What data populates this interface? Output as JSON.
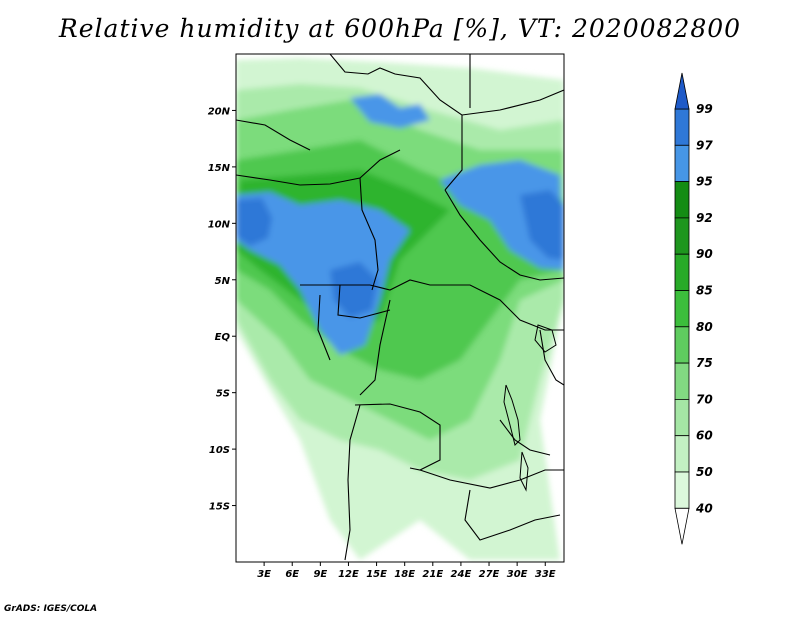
{
  "title": "Relative humidity at 600hPa [%], VT: 2020082800",
  "footer": "GrADS: IGES/COLA",
  "map": {
    "lon_range": [
      0,
      35
    ],
    "lat_range": [
      -20,
      25
    ],
    "lat_ticks": [
      {
        "value": 20,
        "label": "20N"
      },
      {
        "value": 15,
        "label": "15N"
      },
      {
        "value": 10,
        "label": "10N"
      },
      {
        "value": 5,
        "label": "5N"
      },
      {
        "value": 0,
        "label": "EQ"
      },
      {
        "value": -5,
        "label": "5S"
      },
      {
        "value": -10,
        "label": "10S"
      },
      {
        "value": -15,
        "label": "15S"
      }
    ],
    "lon_ticks": [
      {
        "value": 3,
        "label": "3E"
      },
      {
        "value": 6,
        "label": "6E"
      },
      {
        "value": 9,
        "label": "9E"
      },
      {
        "value": 12,
        "label": "12E"
      },
      {
        "value": 15,
        "label": "15E"
      },
      {
        "value": 18,
        "label": "18E"
      },
      {
        "value": 21,
        "label": "21E"
      },
      {
        "value": 24,
        "label": "24E"
      },
      {
        "value": 27,
        "label": "27E"
      },
      {
        "value": 30,
        "label": "30E"
      },
      {
        "value": 33,
        "label": "33E"
      }
    ]
  },
  "colorbar": {
    "levels": [
      "99",
      "97",
      "95",
      "92",
      "90",
      "85",
      "80",
      "75",
      "70",
      "60",
      "50",
      "40"
    ],
    "colors": [
      "#f0fff0",
      "#dcf8dc",
      "#c3f0c3",
      "#a5e6a5",
      "#82d982",
      "#5fcc5f",
      "#3cbe3c",
      "#28aa28",
      "#1e961e",
      "#148c14",
      "#4696e6",
      "#2f78d7",
      "#1e5ac8"
    ]
  },
  "colors": {
    "g1": "#f0fff0",
    "g2": "#d2f5d2",
    "g3": "#aaeaaa",
    "g4": "#7cdc7c",
    "g5": "#50c850",
    "g6": "#2db42d",
    "g7": "#1e961e",
    "b1": "#4a96e8",
    "b2": "#2f78d7"
  }
}
